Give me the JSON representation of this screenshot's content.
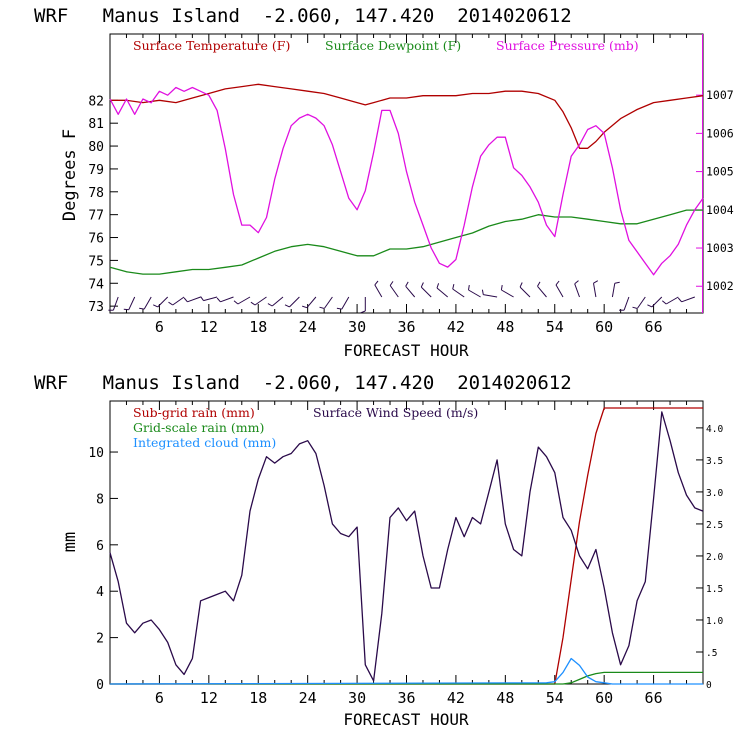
{
  "chart_data": [
    {
      "type": "line",
      "title": "WRF   Manus Island  -2.060, 147.420  2014020612",
      "xlabel": "FORECAST HOUR",
      "ylabel": "Degrees F",
      "y2label": "",
      "xlim": [
        0,
        72
      ],
      "ylim": [
        72.7,
        84.9
      ],
      "y2lim": [
        1001.3,
        1008.6
      ],
      "xticks": [
        6,
        12,
        18,
        24,
        30,
        36,
        42,
        48,
        54,
        60,
        66
      ],
      "yticks": [
        73,
        74,
        75,
        76,
        77,
        78,
        79,
        80,
        81,
        82
      ],
      "y2ticks": [
        1002,
        1003,
        1004,
        1005,
        1006,
        1007
      ],
      "legend": [
        {
          "label": "Surface Temperature (F)",
          "color": "#b00000"
        },
        {
          "label": "Surface Dewpoint (F)",
          "color": "#1a8a1a"
        },
        {
          "label": "Surface Pressure (mb)",
          "color": "#e010e0"
        }
      ],
      "series": [
        {
          "name": "Surface Temperature (F)",
          "axis": "left",
          "color": "#b00000",
          "x": [
            0,
            2,
            4,
            6,
            8,
            10,
            12,
            14,
            16,
            18,
            20,
            22,
            24,
            26,
            28,
            30,
            31,
            32,
            34,
            36,
            38,
            40,
            42,
            44,
            46,
            48,
            50,
            52,
            54,
            55,
            56,
            57,
            58,
            59,
            60,
            62,
            64,
            66,
            68,
            70,
            72
          ],
          "y": [
            82.0,
            82.0,
            81.9,
            82.0,
            81.9,
            82.1,
            82.3,
            82.5,
            82.6,
            82.7,
            82.6,
            82.5,
            82.4,
            82.3,
            82.1,
            81.9,
            81.8,
            81.9,
            82.1,
            82.1,
            82.2,
            82.2,
            82.2,
            82.3,
            82.3,
            82.4,
            82.4,
            82.3,
            82.0,
            81.5,
            80.8,
            79.9,
            79.9,
            80.2,
            80.6,
            81.2,
            81.6,
            81.9,
            82.0,
            82.1,
            82.2
          ]
        },
        {
          "name": "Surface Dewpoint (F)",
          "axis": "left",
          "color": "#1a8a1a",
          "x": [
            0,
            2,
            4,
            6,
            8,
            10,
            12,
            14,
            16,
            18,
            20,
            22,
            24,
            26,
            28,
            30,
            32,
            34,
            36,
            38,
            40,
            42,
            44,
            46,
            48,
            50,
            52,
            54,
            56,
            58,
            60,
            62,
            64,
            66,
            68,
            70,
            72
          ],
          "y": [
            74.7,
            74.5,
            74.4,
            74.4,
            74.5,
            74.6,
            74.6,
            74.7,
            74.8,
            75.1,
            75.4,
            75.6,
            75.7,
            75.6,
            75.4,
            75.2,
            75.2,
            75.5,
            75.5,
            75.6,
            75.8,
            76.0,
            76.2,
            76.5,
            76.7,
            76.8,
            77.0,
            76.9,
            76.9,
            76.8,
            76.7,
            76.6,
            76.6,
            76.8,
            77.0,
            77.2,
            77.2
          ]
        },
        {
          "name": "Surface Pressure (mb)",
          "axis": "right",
          "color": "#e010e0",
          "x": [
            0,
            1,
            2,
            3,
            4,
            5,
            6,
            7,
            8,
            9,
            10,
            11,
            12,
            13,
            14,
            15,
            16,
            17,
            18,
            19,
            20,
            21,
            22,
            23,
            24,
            25,
            26,
            27,
            28,
            29,
            30,
            31,
            32,
            33,
            34,
            35,
            36,
            37,
            38,
            39,
            40,
            41,
            42,
            43,
            44,
            45,
            46,
            47,
            48,
            49,
            50,
            51,
            52,
            53,
            54,
            55,
            56,
            57,
            58,
            59,
            60,
            61,
            62,
            63,
            64,
            65,
            66,
            67,
            68,
            69,
            70,
            71,
            72
          ],
          "y": [
            1006.9,
            1006.5,
            1006.9,
            1006.5,
            1006.9,
            1006.8,
            1007.1,
            1007.0,
            1007.2,
            1007.1,
            1007.2,
            1007.1,
            1007.0,
            1006.6,
            1005.6,
            1004.4,
            1003.6,
            1003.6,
            1003.4,
            1003.8,
            1004.8,
            1005.6,
            1006.2,
            1006.4,
            1006.5,
            1006.4,
            1006.2,
            1005.7,
            1005.0,
            1004.3,
            1004.0,
            1004.5,
            1005.5,
            1006.6,
            1006.6,
            1006.0,
            1005.0,
            1004.2,
            1003.6,
            1003.0,
            1002.6,
            1002.5,
            1002.7,
            1003.6,
            1004.6,
            1005.4,
            1005.7,
            1005.9,
            1005.9,
            1005.1,
            1004.9,
            1004.6,
            1004.2,
            1003.6,
            1003.3,
            1004.4,
            1005.4,
            1005.7,
            1006.1,
            1006.2,
            1006.0,
            1005.1,
            1004.0,
            1003.2,
            1002.9,
            1002.6,
            1002.3,
            1002.6,
            1002.8,
            1003.1,
            1003.6,
            1004.0,
            1004.3
          ]
        }
      ],
      "wind_barbs": [
        {
          "x": 1,
          "dir": 200
        },
        {
          "x": 3,
          "dir": 205
        },
        {
          "x": 5,
          "dir": 210
        },
        {
          "x": 7,
          "dir": 225
        },
        {
          "x": 9,
          "dir": 235
        },
        {
          "x": 11,
          "dir": 250
        },
        {
          "x": 13,
          "dir": 255
        },
        {
          "x": 15,
          "dir": 250
        },
        {
          "x": 17,
          "dir": 240
        },
        {
          "x": 19,
          "dir": 235
        },
        {
          "x": 21,
          "dir": 230
        },
        {
          "x": 23,
          "dir": 225
        },
        {
          "x": 25,
          "dir": 220
        },
        {
          "x": 27,
          "dir": 215
        },
        {
          "x": 29,
          "dir": 210
        },
        {
          "x": 31,
          "dir": 180
        },
        {
          "x": 33,
          "dir": 330
        },
        {
          "x": 35,
          "dir": 325
        },
        {
          "x": 37,
          "dir": 320
        },
        {
          "x": 39,
          "dir": 315
        },
        {
          "x": 41,
          "dir": 310
        },
        {
          "x": 43,
          "dir": 305
        },
        {
          "x": 45,
          "dir": 300
        },
        {
          "x": 47,
          "dir": 280
        },
        {
          "x": 49,
          "dir": 300
        },
        {
          "x": 51,
          "dir": 315
        },
        {
          "x": 53,
          "dir": 320
        },
        {
          "x": 55,
          "dir": 330
        },
        {
          "x": 57,
          "dir": 340
        },
        {
          "x": 59,
          "dir": 350
        },
        {
          "x": 61,
          "dir": 10
        },
        {
          "x": 63,
          "dir": 200
        },
        {
          "x": 65,
          "dir": 215
        },
        {
          "x": 67,
          "dir": 225
        },
        {
          "x": 69,
          "dir": 240
        },
        {
          "x": 71,
          "dir": 250
        }
      ]
    },
    {
      "type": "line",
      "title": "WRF   Manus Island  -2.060, 147.420  2014020612",
      "xlabel": "FORECAST HOUR",
      "ylabel": "mm",
      "xlim": [
        0,
        72
      ],
      "ylim": [
        0,
        12.2
      ],
      "y2lim": [
        0,
        4.42
      ],
      "xticks": [
        6,
        12,
        18,
        24,
        30,
        36,
        42,
        48,
        54,
        60,
        66
      ],
      "yticks": [
        0,
        2,
        4,
        6,
        8,
        10
      ],
      "y2ticks": [
        0,
        0.5,
        1.0,
        1.5,
        2.0,
        2.5,
        3.0,
        3.5,
        4.0
      ],
      "y2ticklabels": [
        "0",
        ".5",
        "1.0",
        "1.5",
        "2.0",
        "2.5",
        "3.0",
        "3.5",
        "4.0"
      ],
      "legend": [
        {
          "label": "Sub-grid rain (mm)",
          "color": "#b00000"
        },
        {
          "label": "Grid-scale rain (mm)",
          "color": "#1a8a1a"
        },
        {
          "label": "Integrated cloud (mm)",
          "color": "#1e90ff"
        },
        {
          "label": "Surface Wind Speed (m/s)",
          "color": "#2a0a4a"
        }
      ],
      "series": [
        {
          "name": "Sub-grid rain (mm)",
          "axis": "left",
          "color": "#b00000",
          "x": [
            0,
            54,
            55,
            56,
            57,
            58,
            59,
            60,
            61,
            72
          ],
          "y": [
            0,
            0,
            2.0,
            4.5,
            7.0,
            9.0,
            10.8,
            11.9,
            11.9,
            11.9
          ]
        },
        {
          "name": "Grid-scale rain (mm)",
          "axis": "left",
          "color": "#1a8a1a",
          "x": [
            0,
            55,
            56,
            57,
            58,
            59,
            60,
            72
          ],
          "y": [
            0,
            0,
            0.05,
            0.2,
            0.35,
            0.45,
            0.5,
            0.5
          ]
        },
        {
          "name": "Integrated cloud (mm)",
          "axis": "left",
          "color": "#1e90ff",
          "x": [
            0,
            53,
            54,
            55,
            56,
            57,
            58,
            59,
            60,
            61,
            72
          ],
          "y": [
            0,
            0.05,
            0.1,
            0.5,
            1.1,
            0.8,
            0.3,
            0.1,
            0.05,
            0,
            0
          ]
        },
        {
          "name": "Surface Wind Speed (m/s)",
          "axis": "right",
          "color": "#2a0a4a",
          "x": [
            0,
            1,
            2,
            3,
            4,
            5,
            6,
            7,
            8,
            9,
            10,
            11,
            12,
            13,
            14,
            15,
            16,
            17,
            18,
            19,
            20,
            21,
            22,
            23,
            24,
            25,
            26,
            27,
            28,
            29,
            30,
            31,
            32,
            33,
            34,
            35,
            36,
            37,
            38,
            39,
            40,
            41,
            42,
            43,
            44,
            45,
            46,
            47,
            48,
            49,
            50,
            51,
            52,
            53,
            54,
            55,
            56,
            57,
            58,
            59,
            60,
            61,
            62,
            63,
            64,
            65,
            66,
            67,
            68,
            69,
            70,
            71,
            72
          ],
          "y": [
            2.05,
            1.6,
            0.95,
            0.8,
            0.95,
            1.0,
            0.85,
            0.65,
            0.3,
            0.15,
            0.4,
            1.3,
            1.35,
            1.4,
            1.45,
            1.3,
            1.7,
            2.7,
            3.2,
            3.55,
            3.45,
            3.55,
            3.6,
            3.75,
            3.8,
            3.6,
            3.1,
            2.5,
            2.35,
            2.3,
            2.45,
            0.3,
            0.05,
            1.1,
            2.6,
            2.75,
            2.55,
            2.7,
            2.0,
            1.5,
            1.5,
            2.1,
            2.6,
            2.3,
            2.6,
            2.5,
            3.0,
            3.5,
            2.5,
            2.1,
            2.0,
            3.0,
            3.7,
            3.55,
            3.3,
            2.6,
            2.4,
            2.0,
            1.8,
            2.1,
            1.5,
            0.8,
            0.3,
            0.6,
            1.3,
            1.6,
            2.9,
            4.25,
            3.8,
            3.3,
            2.95,
            2.75,
            2.7
          ]
        }
      ]
    }
  ]
}
